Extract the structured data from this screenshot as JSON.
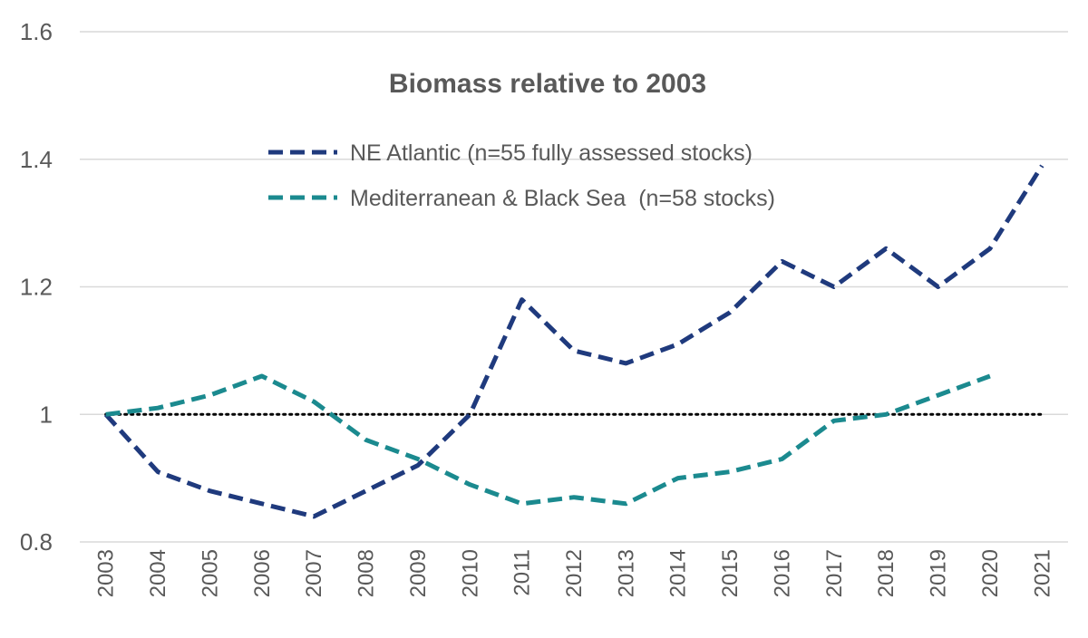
{
  "chart_data": {
    "type": "line",
    "title": "Biomass relative to 2003",
    "xlabel": "",
    "ylabel": "",
    "ylim": [
      0.8,
      1.6
    ],
    "yticks": [
      "0.8",
      "1",
      "1.2",
      "1.4",
      "1.6"
    ],
    "x": [
      "2003",
      "2004",
      "2005",
      "2006",
      "2007",
      "2008",
      "2009",
      "2010",
      "2011",
      "2012",
      "2013",
      "2014",
      "2015",
      "2016",
      "2017",
      "2018",
      "2019",
      "2020",
      "2021"
    ],
    "grid": true,
    "legend_position": "top-center",
    "reference_line": {
      "y": 1,
      "style": "dotted",
      "color": "#000000"
    },
    "series": [
      {
        "name": "NE Atlantic (n=55 fully assessed stocks)",
        "color": "#1f3a7d",
        "style": "dashed",
        "values": [
          1.0,
          0.91,
          0.88,
          0.86,
          0.84,
          0.88,
          0.92,
          1.0,
          1.18,
          1.1,
          1.08,
          1.11,
          1.16,
          1.24,
          1.2,
          1.26,
          1.2,
          1.26,
          1.39
        ]
      },
      {
        "name": "Mediterranean & Black Sea  (n=58 stocks)",
        "color": "#1b8a8f",
        "style": "dashed",
        "values": [
          1.0,
          1.01,
          1.03,
          1.06,
          1.02,
          0.96,
          0.93,
          0.89,
          0.86,
          0.87,
          0.86,
          0.9,
          0.91,
          0.93,
          0.99,
          1.0,
          1.03,
          1.06,
          null
        ]
      }
    ]
  }
}
